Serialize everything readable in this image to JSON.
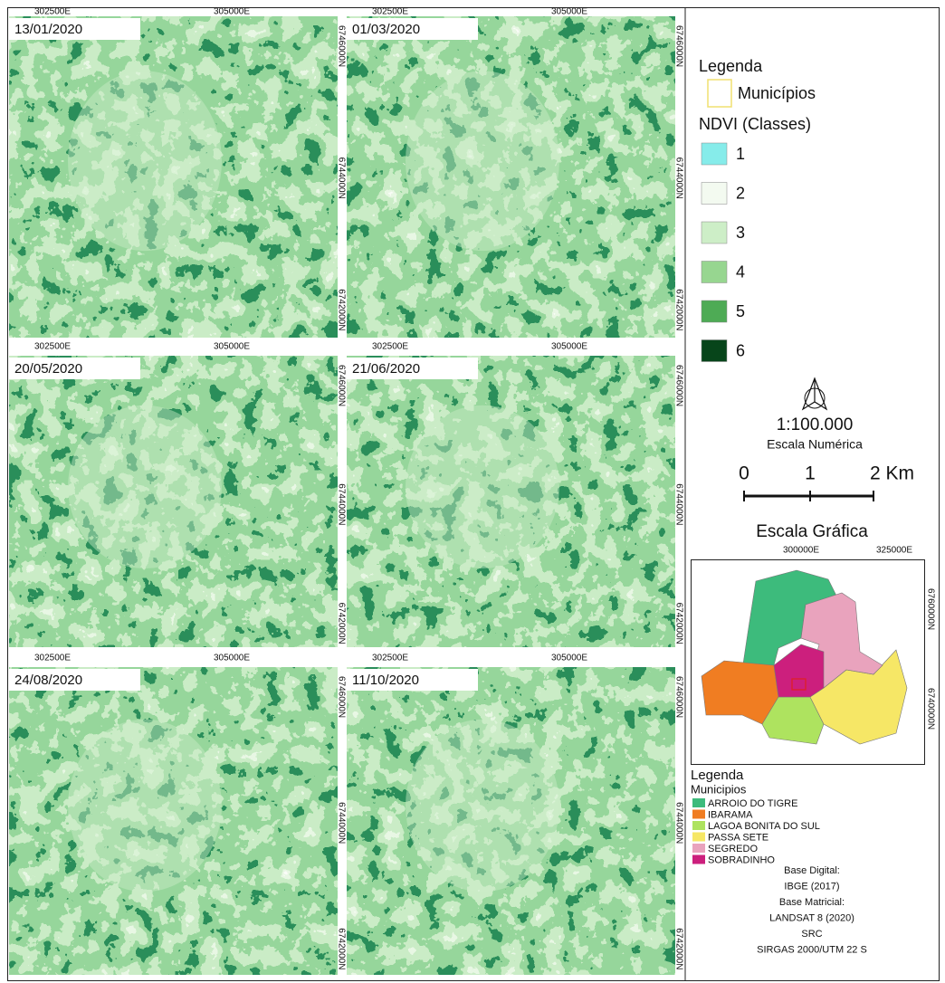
{
  "panels": [
    {
      "date": "13/01/2020",
      "x_labels": [
        "302500E",
        "305000E"
      ],
      "y_labels": [
        "6746000N",
        "6744000N",
        "6742000N"
      ]
    },
    {
      "date": "01/03/2020",
      "x_labels": [
        "302500E",
        "305000E"
      ],
      "y_labels": [
        "6746000N",
        "6744000N",
        "6742000N"
      ]
    },
    {
      "date": "20/05/2020",
      "x_labels": [
        "302500E",
        "305000E"
      ],
      "y_labels": [
        "6746000N",
        "6744000N",
        "6742000N"
      ]
    },
    {
      "date": "21/06/2020",
      "x_labels": [
        "302500E",
        "305000E"
      ],
      "y_labels": [
        "6746000N",
        "6744000N",
        "6742000N"
      ]
    },
    {
      "date": "24/08/2020",
      "x_labels": [
        "302500E",
        "305000E"
      ],
      "y_labels": [
        "6746000N",
        "6744000N",
        "6742000N"
      ]
    },
    {
      "date": "11/10/2020",
      "x_labels": [
        "302500E",
        "305000E"
      ],
      "y_labels": [
        "6746000N",
        "6744000N",
        "6742000N"
      ]
    }
  ],
  "legend": {
    "title": "Legenda",
    "municipios": "Municípios",
    "ndvi_title": "NDVI (Classes)",
    "classes": [
      {
        "label": "1",
        "color": "#86ecea"
      },
      {
        "label": "2",
        "color": "#f3faf0"
      },
      {
        "label": "3",
        "color": "#cdeec7"
      },
      {
        "label": "4",
        "color": "#97d690"
      },
      {
        "label": "5",
        "color": "#4eab55"
      },
      {
        "label": "6",
        "color": "#07451a"
      }
    ]
  },
  "scale": {
    "ratio": "1:100.000",
    "ratio_caption": "Escala Numérica",
    "bar_labels": [
      "0",
      "1",
      "2 Km"
    ],
    "caption": "Escala Gráfica"
  },
  "inset": {
    "x_labels": [
      "300000E",
      "325000E"
    ],
    "y_labels": [
      "6760000N",
      "6740000N"
    ],
    "legend_title": "Legenda",
    "legend_subtitle": "Municipios",
    "municipalities": [
      {
        "name": "ARROIO DO TIGRE",
        "color": "#3dbb7c"
      },
      {
        "name": "IBARAMA",
        "color": "#f07d22"
      },
      {
        "name": "LAGOA BONITA DO SUL",
        "color": "#aee35f"
      },
      {
        "name": "PASSA SETE",
        "color": "#f6e766"
      },
      {
        "name": "SEGREDO",
        "color": "#e9a3bd"
      },
      {
        "name": "SOBRADINHO",
        "color": "#cc1f7d"
      }
    ]
  },
  "credits": [
    "Base Digital:",
    "IBGE (2017)",
    "Base Matricial:",
    "LANDSAT 8 (2020)",
    "SRC",
    "SIRGAS 2000/UTM 22 S"
  ]
}
